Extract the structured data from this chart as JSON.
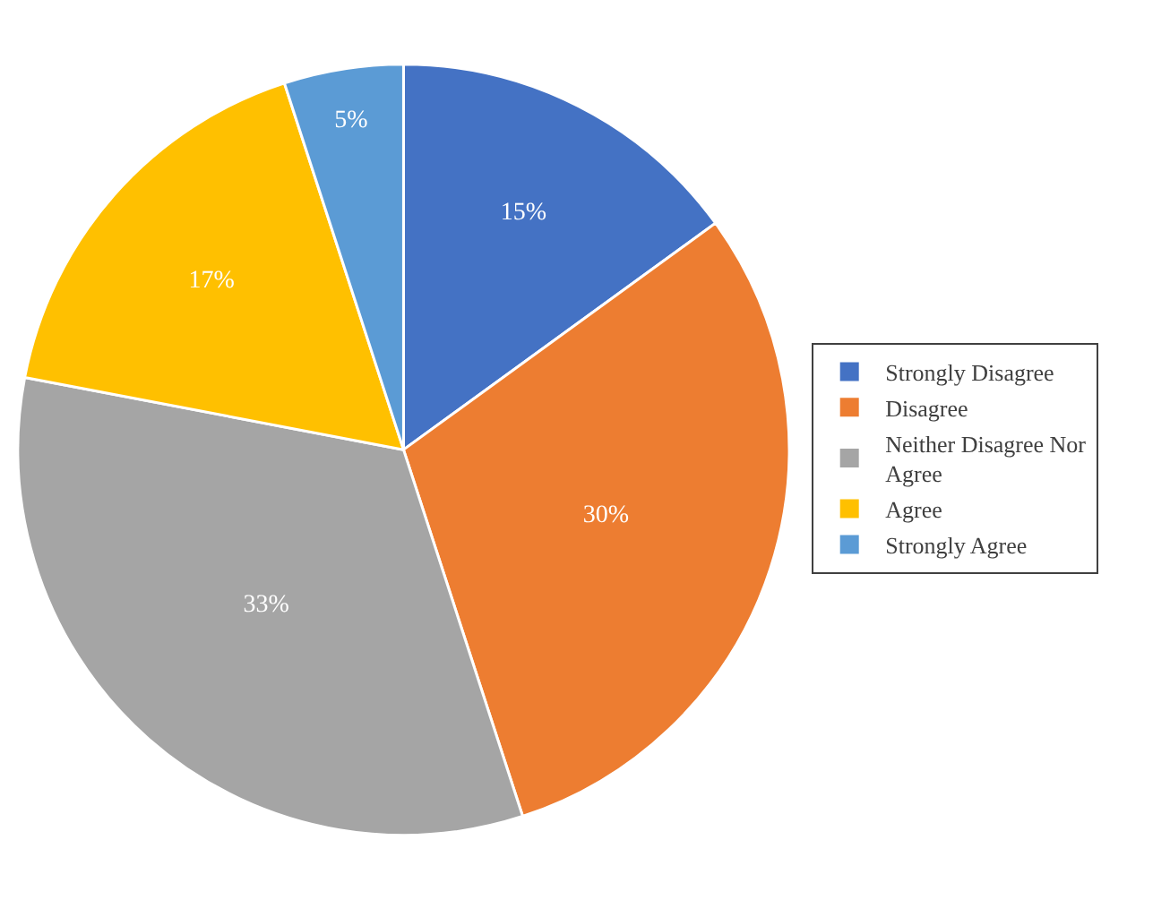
{
  "chart_data": {
    "type": "pie",
    "categories": [
      "Strongly Disagree",
      "Disagree",
      "Neither Disagree Nor Agree",
      "Agree",
      "Strongly Agree"
    ],
    "values": [
      15,
      30,
      33,
      17,
      5
    ],
    "colors": [
      "#4472c4",
      "#ed7d31",
      "#a5a5a5",
      "#ffc000",
      "#5b9bd5"
    ],
    "value_labels": [
      "15%",
      "30%",
      "33%",
      "17%",
      "5%"
    ],
    "legend": "right"
  }
}
